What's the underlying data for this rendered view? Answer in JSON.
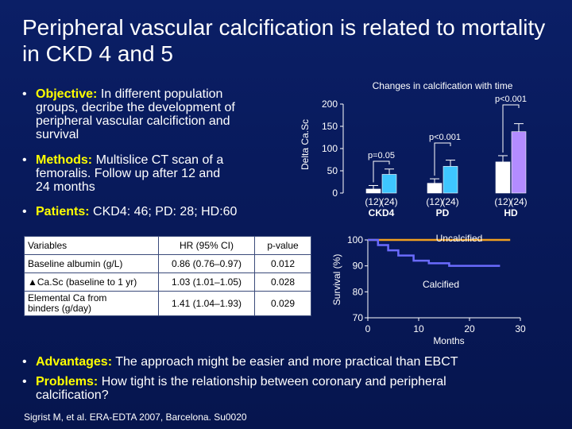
{
  "title": "Peripheral vascular calcification is related to mortality in CKD 4 and 5",
  "bullets": {
    "objective": {
      "key": "Objective:",
      "line1": "In different population",
      "line2": "groups, decribe the development of",
      "line3": "peripheral vascular calcifiction and",
      "line4": "survival"
    },
    "methods": {
      "key": "Methods:",
      "line1": "Multislice CT scan of a",
      "line2": "femoralis. Follow up after 12 and",
      "line3": "24 months"
    },
    "patients": {
      "key": "Patients:",
      "text": "CKD4: 46; PD: 28; HD:60"
    },
    "advantages": {
      "key": "Advantages:",
      "text": "The approach might be easier and more practical than EBCT"
    },
    "problems": {
      "key": "Problems:",
      "line1": "How tight is the relationship between coronary and peripheral",
      "line2": "calcification?"
    }
  },
  "bullet_char": "•",
  "table": {
    "headers": [
      "Variables",
      "HR (95% CI)",
      "p-value"
    ],
    "rows": [
      {
        "variable": "Baseline albumin (g/L)",
        "hr": "0.86 (0.76–0.97)",
        "p": "0.012"
      },
      {
        "variable": "▲Ca.Sc (baseline to 1 yr)",
        "hr": "1.03 (1.01–1.05)",
        "p": "0.028"
      },
      {
        "variable_line1": "Elemental Ca from",
        "variable_line2": "binders (g/day)",
        "hr": "1.41 (1.04–1.93)",
        "p": "0.029"
      }
    ]
  },
  "citation": "Sigrist M, et al. ERA-EDTA 2007, Barcelona. Su0020",
  "colors": {
    "bg": "#0b1f66",
    "accent": "#ffff00",
    "bar1": "#3ec6ff",
    "bar2": "#b38cff",
    "survival_uncalc": "#f0a020",
    "survival_calc": "#6b6bff"
  },
  "chart_data": [
    {
      "type": "bar",
      "title": "Changes in calcification with time",
      "ylabel": "Delta Ca.Sc",
      "ylim": [
        0,
        200
      ],
      "yticks": [
        "0",
        "50",
        "100",
        "150",
        "200"
      ],
      "groups": [
        "CKD4",
        "PD",
        "HD"
      ],
      "subcats": [
        "(12)",
        "(24)"
      ],
      "series": [
        {
          "name": "(12)",
          "values": [
            9,
            22,
            70
          ]
        },
        {
          "name": "(24)",
          "values": [
            42,
            60,
            138
          ]
        }
      ],
      "errors": {
        "(12)": [
          8,
          10,
          14
        ],
        "(24)": [
          12,
          14,
          18
        ]
      },
      "annotations": [
        {
          "group": "CKD4",
          "text": "p=0.05"
        },
        {
          "group": "PD",
          "text": "p<0.001"
        },
        {
          "group": "HD",
          "text": "p<0.001"
        }
      ]
    },
    {
      "type": "line",
      "xlabel": "Months",
      "ylabel": "Survival (%)",
      "xlim": [
        0,
        30
      ],
      "ylim": [
        70,
        100
      ],
      "xticks": [
        "0",
        "10",
        "20",
        "30"
      ],
      "yticks": [
        "70",
        "80",
        "90",
        "100"
      ],
      "series": [
        {
          "name": "Uncalcified",
          "points": [
            [
              0,
              100
            ],
            [
              28,
              100
            ]
          ]
        },
        {
          "name": "Calcified",
          "points": [
            [
              0,
              100
            ],
            [
              2,
              100
            ],
            [
              2,
              98
            ],
            [
              4,
              98
            ],
            [
              4,
              96
            ],
            [
              6,
              96
            ],
            [
              6,
              94
            ],
            [
              9,
              94
            ],
            [
              9,
              92
            ],
            [
              12,
              92
            ],
            [
              12,
              91
            ],
            [
              16,
              91
            ],
            [
              16,
              90
            ],
            [
              26,
              90
            ]
          ]
        }
      ]
    }
  ]
}
